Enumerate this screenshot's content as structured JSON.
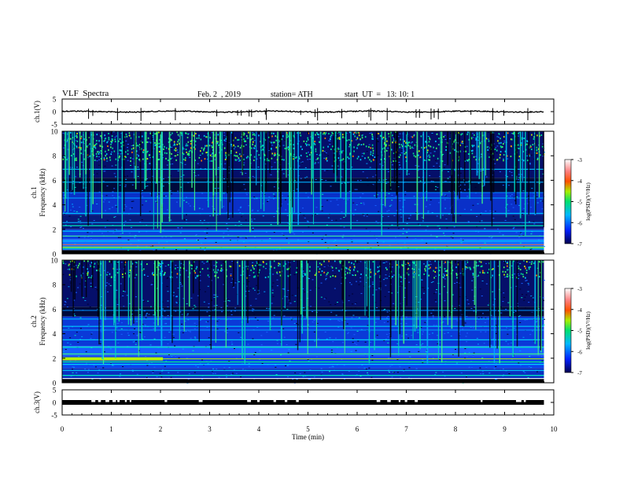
{
  "header": {
    "title": "VLF  Spectra",
    "date": "Feb. 2  , 2019",
    "station": "station= ATH",
    "start": "start  UT  =   13: 10: 1"
  },
  "colors": {
    "trace": "#000000",
    "axis": "#000000",
    "background": "#ffffff"
  },
  "chart_data": [
    {
      "type": "line",
      "panel": "ch1-waveform",
      "ylabel": "ch.1(V)",
      "yticks": [
        "5",
        "0",
        "-5"
      ],
      "ylim": [
        -5,
        5
      ],
      "xlim": [
        0,
        10
      ],
      "x_end_data": 9.8,
      "baseline_value": 0
    },
    {
      "type": "heatmap",
      "panel": "ch1-spectrogram",
      "ylabel_channel": "ch.1",
      "ylabel": "Frequency  (kHz)",
      "yticks": [
        "0",
        "2",
        "4",
        "6",
        "8",
        "10"
      ],
      "ylim": [
        0,
        10
      ],
      "xlim": [
        0,
        10
      ],
      "x_end_data": 9.8,
      "colorbar": {
        "label": "log(PSD)(V²/Hz)",
        "ticks": [
          "-3",
          "-4",
          "-5",
          "-6",
          "-7"
        ],
        "range": [
          -7,
          -3
        ],
        "colors": [
          "#000060",
          "#0030ff",
          "#00c0ff",
          "#00e080",
          "#b0f000",
          "#ff4000",
          "#ffffff"
        ]
      }
    },
    {
      "type": "heatmap",
      "panel": "ch2-spectrogram",
      "ylabel_channel": "ch.2",
      "ylabel": "Frequency  (kHz)",
      "yticks": [
        "0",
        "2",
        "4",
        "6",
        "8",
        "10"
      ],
      "ylim": [
        0,
        10
      ],
      "xlim": [
        0,
        10
      ],
      "x_end_data": 9.8,
      "colorbar": {
        "label": "log(PSD)(V²/Hz)",
        "ticks": [
          "-3",
          "-4",
          "-5",
          "-6",
          "-7"
        ],
        "range": [
          -7,
          -3
        ],
        "colors": [
          "#000060",
          "#0030ff",
          "#00c0ff",
          "#00e080",
          "#b0f000",
          "#ff4000",
          "#ffffff"
        ]
      }
    },
    {
      "type": "line",
      "panel": "ch3-waveform",
      "ylabel": "ch.3(V)",
      "yticks": [
        "5",
        "0",
        "-5"
      ],
      "ylim": [
        -5,
        5
      ],
      "xlim": [
        0,
        10
      ],
      "x_end_data": 9.8,
      "baseline_value": 0
    }
  ],
  "x_axis": {
    "label": "Time  (min)",
    "ticks": [
      "0",
      "1",
      "2",
      "3",
      "4",
      "5",
      "6",
      "7",
      "8",
      "9",
      "10"
    ]
  }
}
